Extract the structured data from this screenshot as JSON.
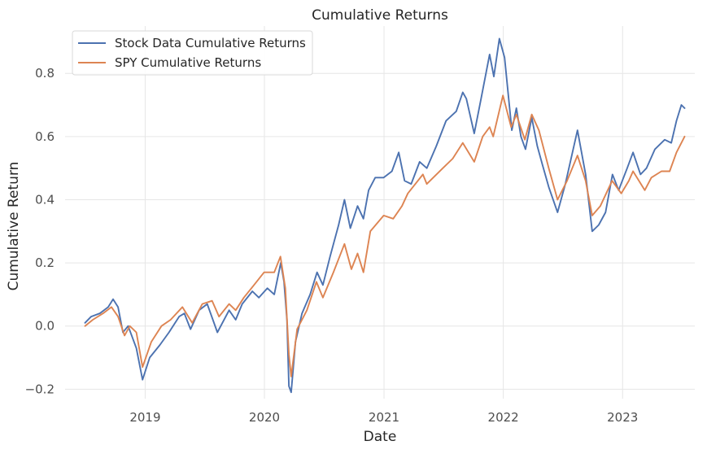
{
  "chart_data": {
    "type": "line",
    "title": "Cumulative Returns",
    "xlabel": "Date",
    "ylabel": "Cumulative Return",
    "xlim": [
      "2018-05-01",
      "2023-08-10"
    ],
    "ylim": [
      -0.23,
      0.95
    ],
    "grid": true,
    "legend_position": "top-left",
    "x_ticks": [
      "2019",
      "2020",
      "2021",
      "2022",
      "2023"
    ],
    "x_tick_dates": [
      "2019-01-01",
      "2020-01-01",
      "2021-01-01",
      "2022-01-01",
      "2023-01-01"
    ],
    "y_ticks": [
      -0.2,
      0.0,
      0.2,
      0.4,
      0.6,
      0.8
    ],
    "y_tick_labels": [
      "−0.2",
      "0.0",
      "0.2",
      "0.4",
      "0.6",
      "0.8"
    ],
    "series": [
      {
        "name": "Stock Data Cumulative Returns",
        "color": "#4c72b0",
        "points": [
          [
            "2018-07-01",
            0.01
          ],
          [
            "2018-07-20",
            0.03
          ],
          [
            "2018-08-15",
            0.04
          ],
          [
            "2018-09-10",
            0.06
          ],
          [
            "2018-09-25",
            0.085
          ],
          [
            "2018-10-10",
            0.06
          ],
          [
            "2018-10-25",
            -0.02
          ],
          [
            "2018-11-10",
            0.0
          ],
          [
            "2018-12-05",
            -0.07
          ],
          [
            "2018-12-24",
            -0.17
          ],
          [
            "2019-01-15",
            -0.1
          ],
          [
            "2019-02-15",
            -0.06
          ],
          [
            "2019-03-15",
            -0.02
          ],
          [
            "2019-04-15",
            0.03
          ],
          [
            "2019-05-01",
            0.04
          ],
          [
            "2019-05-20",
            -0.01
          ],
          [
            "2019-06-15",
            0.05
          ],
          [
            "2019-07-10",
            0.07
          ],
          [
            "2019-08-10",
            -0.02
          ],
          [
            "2019-09-15",
            0.05
          ],
          [
            "2019-10-05",
            0.02
          ],
          [
            "2019-10-25",
            0.07
          ],
          [
            "2019-11-25",
            0.11
          ],
          [
            "2019-12-15",
            0.09
          ],
          [
            "2020-01-10",
            0.12
          ],
          [
            "2020-01-31",
            0.1
          ],
          [
            "2020-02-20",
            0.2
          ],
          [
            "2020-03-01",
            0.14
          ],
          [
            "2020-03-10",
            0.02
          ],
          [
            "2020-03-16",
            -0.19
          ],
          [
            "2020-03-23",
            -0.21
          ],
          [
            "2020-04-05",
            -0.05
          ],
          [
            "2020-04-25",
            0.04
          ],
          [
            "2020-05-20",
            0.1
          ],
          [
            "2020-06-10",
            0.17
          ],
          [
            "2020-06-28",
            0.13
          ],
          [
            "2020-07-20",
            0.22
          ],
          [
            "2020-08-15",
            0.32
          ],
          [
            "2020-09-02",
            0.4
          ],
          [
            "2020-09-20",
            0.31
          ],
          [
            "2020-10-12",
            0.38
          ],
          [
            "2020-10-30",
            0.34
          ],
          [
            "2020-11-15",
            0.43
          ],
          [
            "2020-12-05",
            0.47
          ],
          [
            "2020-12-31",
            0.47
          ],
          [
            "2021-01-25",
            0.49
          ],
          [
            "2021-02-15",
            0.55
          ],
          [
            "2021-03-05",
            0.46
          ],
          [
            "2021-03-25",
            0.45
          ],
          [
            "2021-04-20",
            0.52
          ],
          [
            "2021-05-12",
            0.5
          ],
          [
            "2021-06-10",
            0.57
          ],
          [
            "2021-07-10",
            0.65
          ],
          [
            "2021-08-10",
            0.68
          ],
          [
            "2021-08-30",
            0.74
          ],
          [
            "2021-09-10",
            0.72
          ],
          [
            "2021-10-04",
            0.61
          ],
          [
            "2021-10-25",
            0.72
          ],
          [
            "2021-11-20",
            0.86
          ],
          [
            "2021-12-03",
            0.79
          ],
          [
            "2021-12-20",
            0.91
          ],
          [
            "2022-01-05",
            0.85
          ],
          [
            "2022-01-27",
            0.62
          ],
          [
            "2022-02-10",
            0.69
          ],
          [
            "2022-02-24",
            0.6
          ],
          [
            "2022-03-10",
            0.56
          ],
          [
            "2022-03-29",
            0.66
          ],
          [
            "2022-04-15",
            0.57
          ],
          [
            "2022-05-01",
            0.51
          ],
          [
            "2022-05-20",
            0.44
          ],
          [
            "2022-06-16",
            0.36
          ],
          [
            "2022-07-10",
            0.45
          ],
          [
            "2022-08-16",
            0.62
          ],
          [
            "2022-09-10",
            0.48
          ],
          [
            "2022-09-30",
            0.3
          ],
          [
            "2022-10-20",
            0.32
          ],
          [
            "2022-11-10",
            0.36
          ],
          [
            "2022-12-01",
            0.48
          ],
          [
            "2022-12-20",
            0.43
          ],
          [
            "2023-01-15",
            0.5
          ],
          [
            "2023-02-02",
            0.55
          ],
          [
            "2023-02-25",
            0.48
          ],
          [
            "2023-03-15",
            0.5
          ],
          [
            "2023-04-10",
            0.56
          ],
          [
            "2023-05-10",
            0.59
          ],
          [
            "2023-05-30",
            0.58
          ],
          [
            "2023-06-15",
            0.65
          ],
          [
            "2023-06-30",
            0.7
          ],
          [
            "2023-07-10",
            0.69
          ]
        ]
      },
      {
        "name": "SPY Cumulative Returns",
        "color": "#dd8452",
        "points": [
          [
            "2018-07-01",
            0.0
          ],
          [
            "2018-07-25",
            0.02
          ],
          [
            "2018-08-25",
            0.04
          ],
          [
            "2018-09-20",
            0.06
          ],
          [
            "2018-10-10",
            0.03
          ],
          [
            "2018-10-30",
            -0.03
          ],
          [
            "2018-11-15",
            0.0
          ],
          [
            "2018-12-05",
            -0.02
          ],
          [
            "2018-12-24",
            -0.13
          ],
          [
            "2019-01-20",
            -0.05
          ],
          [
            "2019-02-20",
            0.0
          ],
          [
            "2019-03-20",
            0.02
          ],
          [
            "2019-04-25",
            0.06
          ],
          [
            "2019-05-25",
            0.01
          ],
          [
            "2019-06-25",
            0.07
          ],
          [
            "2019-07-25",
            0.08
          ],
          [
            "2019-08-15",
            0.03
          ],
          [
            "2019-09-15",
            0.07
          ],
          [
            "2019-10-05",
            0.05
          ],
          [
            "2019-10-30",
            0.09
          ],
          [
            "2019-11-30",
            0.13
          ],
          [
            "2019-12-31",
            0.17
          ],
          [
            "2020-01-31",
            0.17
          ],
          [
            "2020-02-19",
            0.22
          ],
          [
            "2020-03-05",
            0.12
          ],
          [
            "2020-03-16",
            -0.09
          ],
          [
            "2020-03-23",
            -0.16
          ],
          [
            "2020-04-10",
            -0.01
          ],
          [
            "2020-05-10",
            0.05
          ],
          [
            "2020-06-08",
            0.14
          ],
          [
            "2020-06-28",
            0.09
          ],
          [
            "2020-07-30",
            0.17
          ],
          [
            "2020-09-02",
            0.26
          ],
          [
            "2020-09-23",
            0.18
          ],
          [
            "2020-10-12",
            0.23
          ],
          [
            "2020-10-30",
            0.17
          ],
          [
            "2020-11-20",
            0.3
          ],
          [
            "2020-12-31",
            0.35
          ],
          [
            "2021-01-29",
            0.34
          ],
          [
            "2021-02-25",
            0.38
          ],
          [
            "2021-03-15",
            0.42
          ],
          [
            "2021-04-30",
            0.48
          ],
          [
            "2021-05-12",
            0.45
          ],
          [
            "2021-06-30",
            0.5
          ],
          [
            "2021-07-30",
            0.53
          ],
          [
            "2021-08-30",
            0.58
          ],
          [
            "2021-10-04",
            0.52
          ],
          [
            "2021-10-30",
            0.6
          ],
          [
            "2021-11-20",
            0.63
          ],
          [
            "2021-12-01",
            0.6
          ],
          [
            "2021-12-31",
            0.73
          ],
          [
            "2022-01-25",
            0.63
          ],
          [
            "2022-02-10",
            0.67
          ],
          [
            "2022-03-08",
            0.59
          ],
          [
            "2022-03-29",
            0.67
          ],
          [
            "2022-04-20",
            0.62
          ],
          [
            "2022-05-20",
            0.5
          ],
          [
            "2022-06-16",
            0.4
          ],
          [
            "2022-07-15",
            0.46
          ],
          [
            "2022-08-16",
            0.54
          ],
          [
            "2022-09-10",
            0.46
          ],
          [
            "2022-09-30",
            0.35
          ],
          [
            "2022-10-25",
            0.38
          ],
          [
            "2022-11-30",
            0.46
          ],
          [
            "2022-12-28",
            0.42
          ],
          [
            "2023-01-20",
            0.46
          ],
          [
            "2023-02-02",
            0.49
          ],
          [
            "2023-03-10",
            0.43
          ],
          [
            "2023-03-30",
            0.47
          ],
          [
            "2023-04-30",
            0.49
          ],
          [
            "2023-05-25",
            0.49
          ],
          [
            "2023-06-15",
            0.55
          ],
          [
            "2023-07-10",
            0.6
          ]
        ]
      }
    ]
  }
}
